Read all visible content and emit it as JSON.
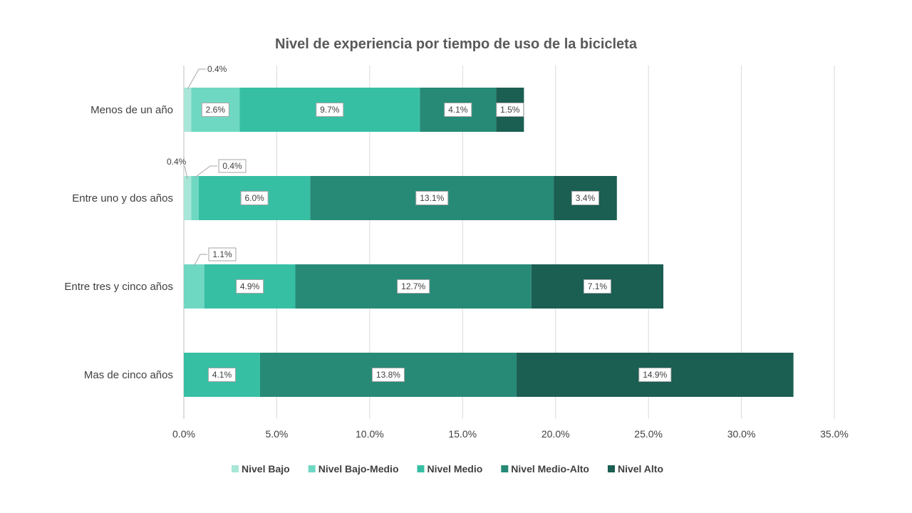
{
  "chart_data": {
    "type": "bar",
    "orientation": "horizontal",
    "stacked": true,
    "title": "Nivel de experiencia por tiempo de uso de la bicicleta",
    "categories": [
      "Menos de un año",
      "Entre uno y dos años",
      "Entre tres y cinco años",
      "Mas de cinco años"
    ],
    "series": [
      {
        "name": "Nivel Bajo",
        "color": "#a8e6d8",
        "values": [
          0.4,
          0.4,
          null,
          null
        ],
        "labels": [
          "0.4%",
          "0.4%",
          "",
          ""
        ]
      },
      {
        "name": "Nivel Bajo-Medio",
        "color": "#6fd8c3",
        "values": [
          2.6,
          0.4,
          1.1,
          null
        ],
        "labels": [
          "2.6%",
          "0.4%",
          "1.1%",
          ""
        ]
      },
      {
        "name": "Nivel Medio",
        "color": "#37bfa4",
        "values": [
          9.7,
          6.0,
          4.9,
          4.1
        ],
        "labels": [
          "9.7%",
          "6.0%",
          "4.9%",
          "4.1%"
        ]
      },
      {
        "name": "Nivel Medio-Alto",
        "color": "#268a76",
        "values": [
          4.1,
          13.1,
          12.7,
          13.8
        ],
        "labels": [
          "4.1%",
          "13.1%",
          "12.7%",
          "13.8%"
        ]
      },
      {
        "name": "Nivel Alto",
        "color": "#1b5e52",
        "values": [
          1.5,
          3.4,
          7.1,
          14.9
        ],
        "labels": [
          "1.5%",
          "3.4%",
          "7.1%",
          "14.9%"
        ]
      }
    ],
    "xlim": [
      0,
      35
    ],
    "xticks": [
      "0.0%",
      "5.0%",
      "10.0%",
      "15.0%",
      "20.0%",
      "25.0%",
      "30.0%",
      "35.0%"
    ],
    "grid": true,
    "legend_position": "bottom"
  }
}
